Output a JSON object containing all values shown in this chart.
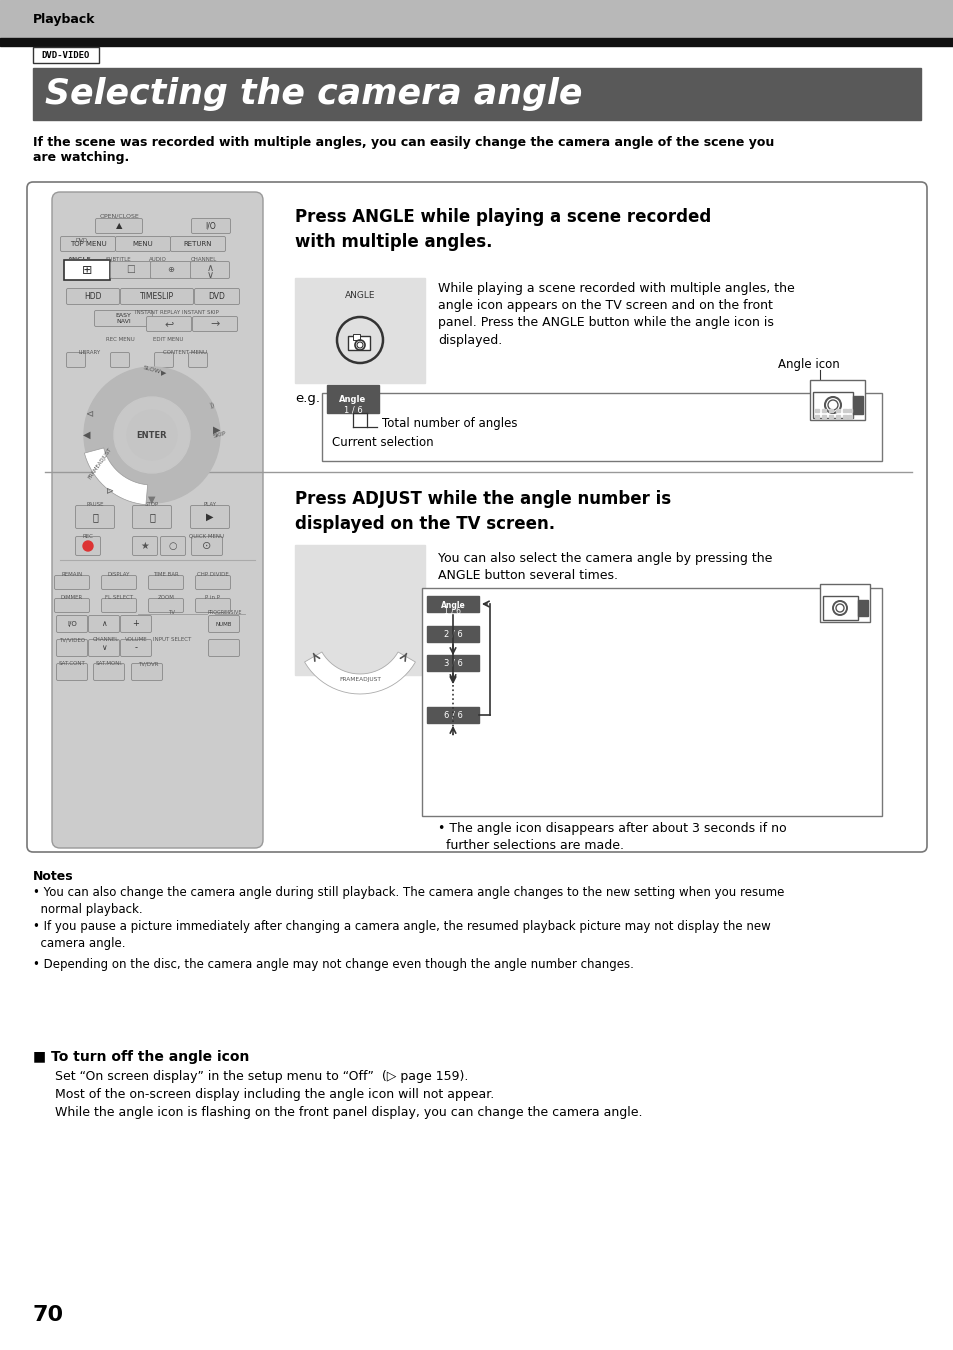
{
  "page_bg": "#ffffff",
  "top_bar_color": "#b8b8b8",
  "black_bar_color": "#111111",
  "title_bg": "#595959",
  "title_text": "Selecting the camera angle",
  "title_color": "#ffffff",
  "playback_text": "Playback",
  "dvd_video_text": "DVD-VIDEO",
  "intro_text": "If the scene was recorded with multiple angles, you can easily change the camera angle of the scene you\nare watching.",
  "section1_title": "Press ANGLE while playing a scene recorded\nwith multiple angles.",
  "section1_body": "While playing a scene recorded with multiple angles, the\nangle icon appears on the TV screen and on the front\npanel. Press the ANGLE button while the angle icon is\ndisplayed.",
  "angle_icon_label": "Angle icon",
  "eg_label": "e.g.",
  "total_angles_text": "Total number of angles",
  "current_sel_text": "Current selection",
  "section2_title": "Press ADJUST while the angle number is\ndisplayed on the TV screen.",
  "section2_body": "You can also select the camera angle by pressing the\nANGLE button several times.",
  "bullet_text": "• The angle icon disappears after about 3 seconds if no\n  further selections are made.",
  "notes_title": "Notes",
  "note1": "• You can also change the camera angle during still playback. The camera angle changes to the new setting when you resume\n  normal playback.",
  "note2": "• If you pause a picture immediately after changing a camera angle, the resumed playback picture may not display the new\n  camera angle.",
  "note3": "• Depending on the disc, the camera angle may not change even though the angle number changes.",
  "section3_title": "■ To turn off the angle icon",
  "section3_line1": "Set “On screen display” in the setup menu to “Off”  (▷ page 159).",
  "section3_line2": "Most of the on-screen display including the angle icon will not appear.",
  "section3_line3": "While the angle icon is flashing on the front panel display, you can change the camera angle.",
  "page_number": "70",
  "light_gray": "#e0e0e0",
  "remote_gray": "#cccccc",
  "remote_dark": "#aaaaaa",
  "btn_color": "#c8c8c8",
  "angle_dark": "#555555"
}
